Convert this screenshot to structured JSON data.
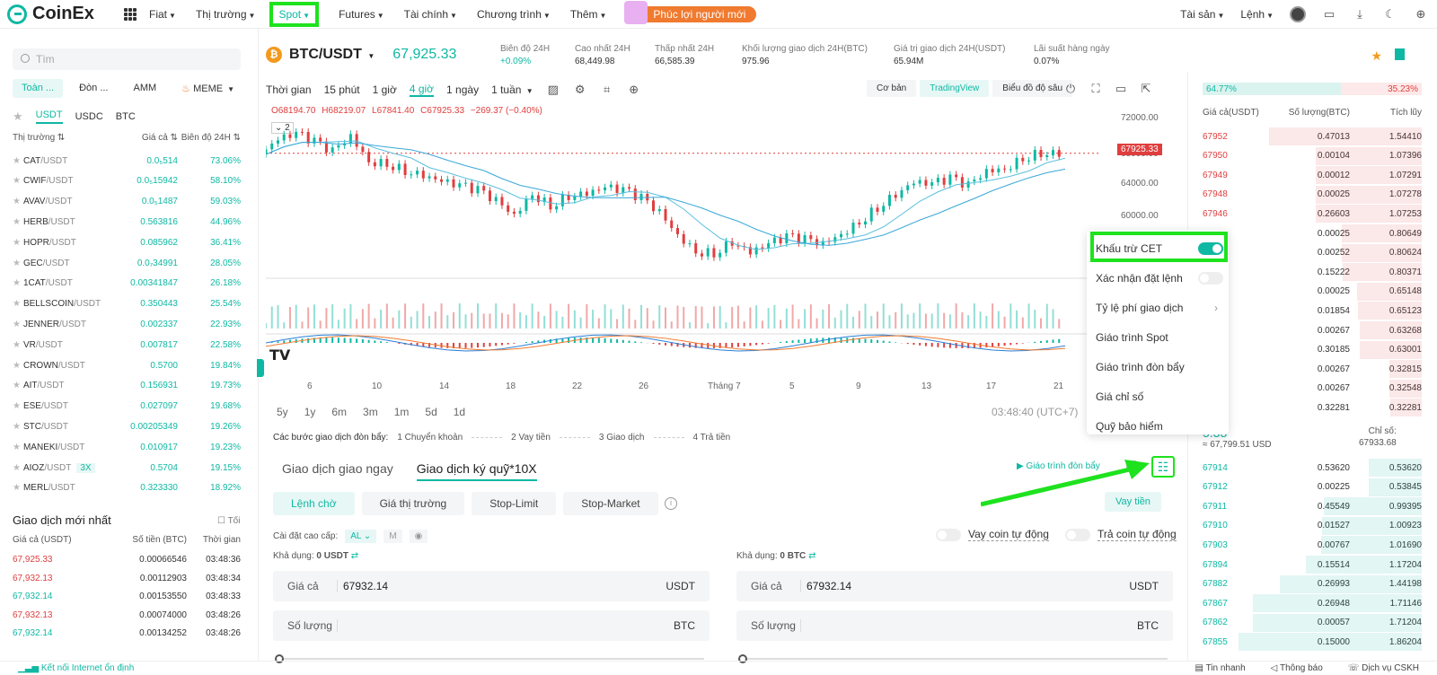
{
  "nav": {
    "brand": "CoinEx",
    "items": [
      "Fiat",
      "Thị trường",
      "Spot",
      "Futures",
      "Tài chính",
      "Chương trình",
      "Thêm"
    ],
    "promo": "Phúc lợi người mới",
    "right": [
      "Tài sản",
      "Lệnh"
    ]
  },
  "ticker": {
    "coin_symbol": "₿",
    "pair": "BTC/USDT",
    "last": "67,925.33",
    "stats": [
      {
        "label": "Biên độ 24H",
        "value": "+0.09%"
      },
      {
        "label": "Cao nhất 24H",
        "value": "68,449.98"
      },
      {
        "label": "Thấp nhất 24H",
        "value": "66,585.39"
      },
      {
        "label": "Khối lượng giao dịch 24H(BTC)",
        "value": "975.96"
      },
      {
        "label": "Giá trị giao dịch 24H(USDT)",
        "value": "65.94M"
      },
      {
        "label": "Lãi suất hàng ngày",
        "value": "0.07%"
      }
    ]
  },
  "sidebar": {
    "search_placeholder": "Tìm",
    "tabs": [
      "Toàn ...",
      "Đòn ...",
      "AMM",
      "MEME"
    ],
    "quote_tabs": [
      "USDT",
      "USDC",
      "BTC"
    ],
    "headers": [
      "Thị trường",
      "Giá cả",
      "Biên độ 24H"
    ],
    "markets": [
      {
        "base": "CAT",
        "quote": "/USDT",
        "price": "0.0₅514",
        "change": "73.06%"
      },
      {
        "base": "CWIF",
        "quote": "/USDT",
        "price": "0.0₅15942",
        "change": "58.10%"
      },
      {
        "base": "AVAV",
        "quote": "/USDT",
        "price": "0.0₅1487",
        "change": "59.03%"
      },
      {
        "base": "HERB",
        "quote": "/USDT",
        "price": "0.563816",
        "change": "44.96%"
      },
      {
        "base": "HOPR",
        "quote": "/USDT",
        "price": "0.085962",
        "change": "36.41%"
      },
      {
        "base": "GEC",
        "quote": "/USDT",
        "price": "0.0₇34991",
        "change": "28.05%"
      },
      {
        "base": "1CAT",
        "quote": "/USDT",
        "price": "0.00341847",
        "change": "26.18%"
      },
      {
        "base": "BELLSCOIN",
        "quote": "/USDT",
        "price": "0.350443",
        "change": "25.54%"
      },
      {
        "base": "JENNER",
        "quote": "/USDT",
        "price": "0.002337",
        "change": "22.93%"
      },
      {
        "base": "VR",
        "quote": "/USDT",
        "price": "0.007817",
        "change": "22.58%"
      },
      {
        "base": "CROWN",
        "quote": "/USDT",
        "price": "0.5700",
        "change": "19.84%"
      },
      {
        "base": "AIT",
        "quote": "/USDT",
        "price": "0.156931",
        "change": "19.73%"
      },
      {
        "base": "ESE",
        "quote": "/USDT",
        "price": "0.027097",
        "change": "19.68%"
      },
      {
        "base": "STC",
        "quote": "/USDT",
        "price": "0.00205349",
        "change": "19.26%"
      },
      {
        "base": "MANEKI",
        "quote": "/USDT",
        "price": "0.010917",
        "change": "19.23%"
      },
      {
        "base": "AIOZ",
        "quote": "/USDT",
        "price": "0.5704",
        "change": "19.15%",
        "badge": "3X"
      },
      {
        "base": "MERL",
        "quote": "/USDT",
        "price": "0.323330",
        "change": "18.92%"
      }
    ],
    "latest_title": "Giao dịch mới nhất",
    "latest_toggle": "Tối",
    "latest_headers": [
      "Giá cả (USDT)",
      "Số tiền (BTC)",
      "Thời gian"
    ],
    "latest": [
      {
        "price": "67,925.33",
        "amount": "0.00066546",
        "time": "03:48:36",
        "side": "sell"
      },
      {
        "price": "67,932.13",
        "amount": "0.00112903",
        "time": "03:48:34",
        "side": "sell"
      },
      {
        "price": "67,932.14",
        "amount": "0.00153550",
        "time": "03:48:33",
        "side": "buy"
      },
      {
        "price": "67,932.13",
        "amount": "0.00074000",
        "time": "03:48:26",
        "side": "sell"
      },
      {
        "price": "67,932.14",
        "amount": "0.00134252",
        "time": "03:48:26",
        "side": "buy"
      }
    ]
  },
  "chart_toolbar": {
    "intervals": [
      "Thời gian",
      "15 phút",
      "1 giờ",
      "4 giờ",
      "1 ngày",
      "1 tuần"
    ],
    "views": [
      "Cơ bản",
      "TradingView",
      "Biểu đồ độ sâu"
    ],
    "ranges": [
      "5y",
      "1y",
      "6m",
      "3m",
      "1m",
      "5d",
      "1d"
    ],
    "clock": "03:48:40 (UTC+7)",
    "ma_badge": "2"
  },
  "chart_data": {
    "type": "candlestick",
    "ohlc": {
      "O": "68194.70",
      "H": "68219.07",
      "L": "67841.40",
      "C": "67925.33",
      "change": "−269.37 (−0.40%)"
    },
    "y_ticks": [
      "72000.00",
      "68000.00",
      "64000.00",
      "60000.00"
    ],
    "x_ticks": [
      "6",
      "10",
      "14",
      "18",
      "22",
      "26",
      "Tháng 7",
      "5",
      "9",
      "13",
      "17",
      "21"
    ],
    "last_price_label": "67925.33",
    "close_series": [
      67800,
      69500,
      70100,
      69200,
      68100,
      69800,
      67000,
      66800,
      66000,
      65500,
      64800,
      64300,
      63800,
      62600,
      61000,
      63400,
      62100,
      63200,
      63500,
      64100,
      63800,
      62900,
      61300,
      58800,
      57000,
      56800,
      58100,
      56900,
      57800,
      58600,
      58300,
      57800,
      58900,
      60300,
      61900,
      63400,
      64700,
      64500,
      65100,
      64300,
      65900,
      66200,
      67400,
      68000,
      67925
    ]
  },
  "leverage_steps": {
    "title": "Các bước giao dịch đòn bẩy:",
    "steps": [
      "1  Chuyển khoản",
      "2  Vay tiền",
      "3  Giao dịch",
      "4  Trả tiền"
    ]
  },
  "trade": {
    "tabs": [
      "Giao dịch giao ngay",
      "Giao dịch ký quỹ*10X"
    ],
    "tutorial": "Giáo trình đòn bẩy",
    "order_types": [
      "Lệnh chờ",
      "Giá thị trường",
      "Stop-Limit",
      "Stop-Market"
    ],
    "borrow": "Vay tiền",
    "advanced_label": "Cài đặt cao cấp:",
    "advanced_opt1": "AL",
    "advanced_opt2": "M",
    "auto_borrow": "Vay coin tự động",
    "auto_repay": "Trả coin tự động",
    "buy": {
      "avail_label": "Khả dụng:",
      "avail": "0 USDT",
      "price_label": "Giá cả",
      "price": "67932.14",
      "price_unit": "USDT",
      "qty_label": "Số lượng",
      "qty_unit": "BTC"
    },
    "sell": {
      "avail_label": "Khả dụng:",
      "avail": "0 BTC",
      "price_label": "Giá cả",
      "price": "67932.14",
      "price_unit": "USDT",
      "qty_label": "Số lượng",
      "qty_unit": "BTC"
    }
  },
  "orderbook": {
    "buy_ratio": "64.77%",
    "sell_ratio": "35.23%",
    "headers": [
      "Giá cả(USDT)",
      "Số lượng(BTC)",
      "Tích lũy"
    ],
    "asks": [
      {
        "price": "67952",
        "qty": "0.47013",
        "total": "1.54410"
      },
      {
        "price": "67950",
        "qty": "0.00104",
        "total": "1.07396"
      },
      {
        "price": "67949",
        "qty": "0.00012",
        "total": "1.07291"
      },
      {
        "price": "67948",
        "qty": "0.00025",
        "total": "1.07278"
      },
      {
        "price": "67946",
        "qty": "0.26603",
        "total": "1.07253"
      },
      {
        "price": "",
        "qty": "0.00025",
        "total": "0.80649"
      },
      {
        "price": "",
        "qty": "0.00252",
        "total": "0.80624"
      },
      {
        "price": "",
        "qty": "0.15222",
        "total": "0.80371"
      },
      {
        "price": "",
        "qty": "0.00025",
        "total": "0.65148"
      },
      {
        "price": "",
        "qty": "0.01854",
        "total": "0.65123"
      },
      {
        "price": "",
        "qty": "0.00267",
        "total": "0.63268"
      },
      {
        "price": "",
        "qty": "0.30185",
        "total": "0.63001"
      },
      {
        "price": "",
        "qty": "0.00267",
        "total": "0.32815"
      },
      {
        "price": "",
        "qty": "0.00267",
        "total": "0.32548"
      },
      {
        "price": "",
        "qty": "0.32281",
        "total": "0.32281"
      }
    ],
    "mid_price": "5.33",
    "mid_usd": "≈ 67,799.51 USD",
    "index_label": "Chỉ số:",
    "index_value": "67933.68",
    "bids": [
      {
        "price": "67914",
        "qty": "0.53620",
        "total": "0.53620"
      },
      {
        "price": "67912",
        "qty": "0.00225",
        "total": "0.53845"
      },
      {
        "price": "67911",
        "qty": "0.45549",
        "total": "0.99395"
      },
      {
        "price": "67910",
        "qty": "0.01527",
        "total": "1.00923"
      },
      {
        "price": "67903",
        "qty": "0.00767",
        "total": "1.01690"
      },
      {
        "price": "67894",
        "qty": "0.15514",
        "total": "1.17204"
      },
      {
        "price": "67882",
        "qty": "0.26993",
        "total": "1.44198"
      },
      {
        "price": "67867",
        "qty": "0.26948",
        "total": "1.71146"
      },
      {
        "price": "67862",
        "qty": "0.00057",
        "total": "1.71204"
      },
      {
        "price": "67855",
        "qty": "0.15000",
        "total": "1.86204"
      }
    ]
  },
  "settings_menu": {
    "items": [
      "Khấu trừ CET",
      "Xác nhận đặt lệnh",
      "Tỷ lệ phí giao dịch",
      "Giáo trình Spot",
      "Giáo trình đòn bẩy",
      "Giá chỉ số",
      "Quỹ bảo hiểm"
    ]
  },
  "footer": {
    "status": "Kết nối Internet ổn định",
    "links": [
      "Tin nhanh",
      "Thông báo",
      "Dịch vụ CSKH"
    ]
  },
  "colors": {
    "accent": "#0fb8a3",
    "down": "#e03e3e",
    "highlight": "#1ee21e"
  }
}
